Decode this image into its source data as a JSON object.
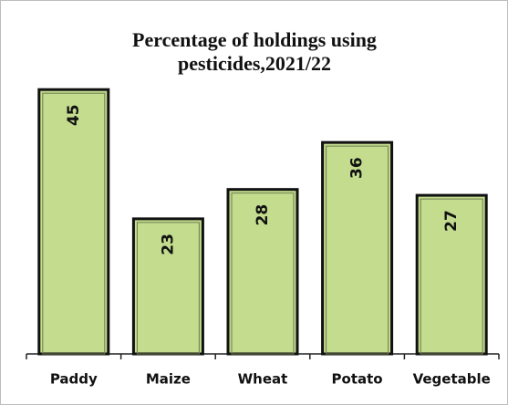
{
  "chart_data": {
    "type": "bar",
    "title": "Percentage of holdings using pesticides,2021/22",
    "categories": [
      "Paddy",
      "Maize",
      "Wheat",
      "Potato",
      "Vegetable"
    ],
    "values": [
      45,
      23,
      28,
      36,
      27
    ],
    "color": "#c3dc8e"
  }
}
